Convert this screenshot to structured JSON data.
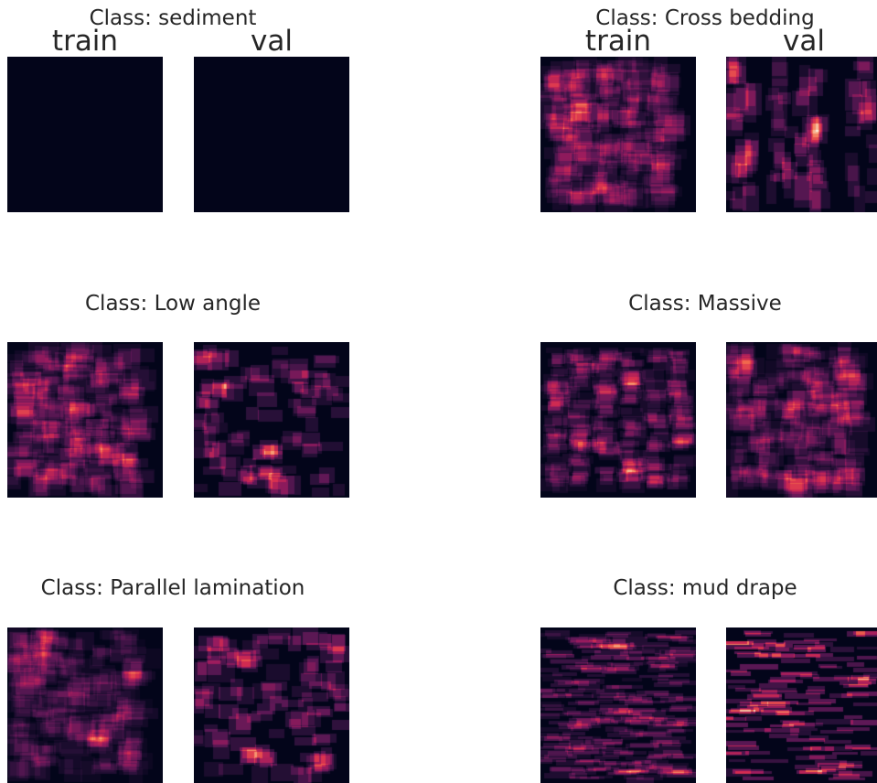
{
  "chart_data": {
    "type": "heatmap",
    "colormap": "rocket",
    "background": "#03051a",
    "panels": [
      {
        "title": "Class: sediment",
        "subplots": [
          {
            "label": "train",
            "max_intensity": 0.0,
            "pattern": "empty",
            "seed": 11
          },
          {
            "label": "val",
            "max_intensity": 0.0,
            "pattern": "empty",
            "seed": 12
          }
        ]
      },
      {
        "title": "Class: Cross bedding",
        "subplots": [
          {
            "label": "train",
            "max_intensity": 0.85,
            "pattern": "dense_boxes",
            "seed": 21
          },
          {
            "label": "val",
            "max_intensity": 1.0,
            "pattern": "sparse_columns",
            "seed": 22
          }
        ]
      },
      {
        "title": "Class: Low angle",
        "subplots": [
          {
            "label": "",
            "max_intensity": 0.85,
            "pattern": "dense_boxes",
            "seed": 31
          },
          {
            "label": "",
            "max_intensity": 0.9,
            "pattern": "sparse_boxes",
            "seed": 32
          }
        ]
      },
      {
        "title": "Class: Massive",
        "subplots": [
          {
            "label": "",
            "max_intensity": 0.9,
            "pattern": "vertical_bands",
            "seed": 41
          },
          {
            "label": "",
            "max_intensity": 0.8,
            "pattern": "dense_boxes",
            "seed": 42
          }
        ]
      },
      {
        "title": "Class: Parallel lamination",
        "subplots": [
          {
            "label": "",
            "max_intensity": 0.85,
            "pattern": "dense_boxes",
            "seed": 51
          },
          {
            "label": "",
            "max_intensity": 0.85,
            "pattern": "sparse_boxes",
            "seed": 52
          }
        ]
      },
      {
        "title": "Class: mud drape",
        "subplots": [
          {
            "label": "",
            "max_intensity": 0.9,
            "pattern": "horizontal_streaks",
            "seed": 61
          },
          {
            "label": "",
            "max_intensity": 0.95,
            "pattern": "sparse_streaks",
            "seed": 62
          }
        ]
      }
    ]
  }
}
